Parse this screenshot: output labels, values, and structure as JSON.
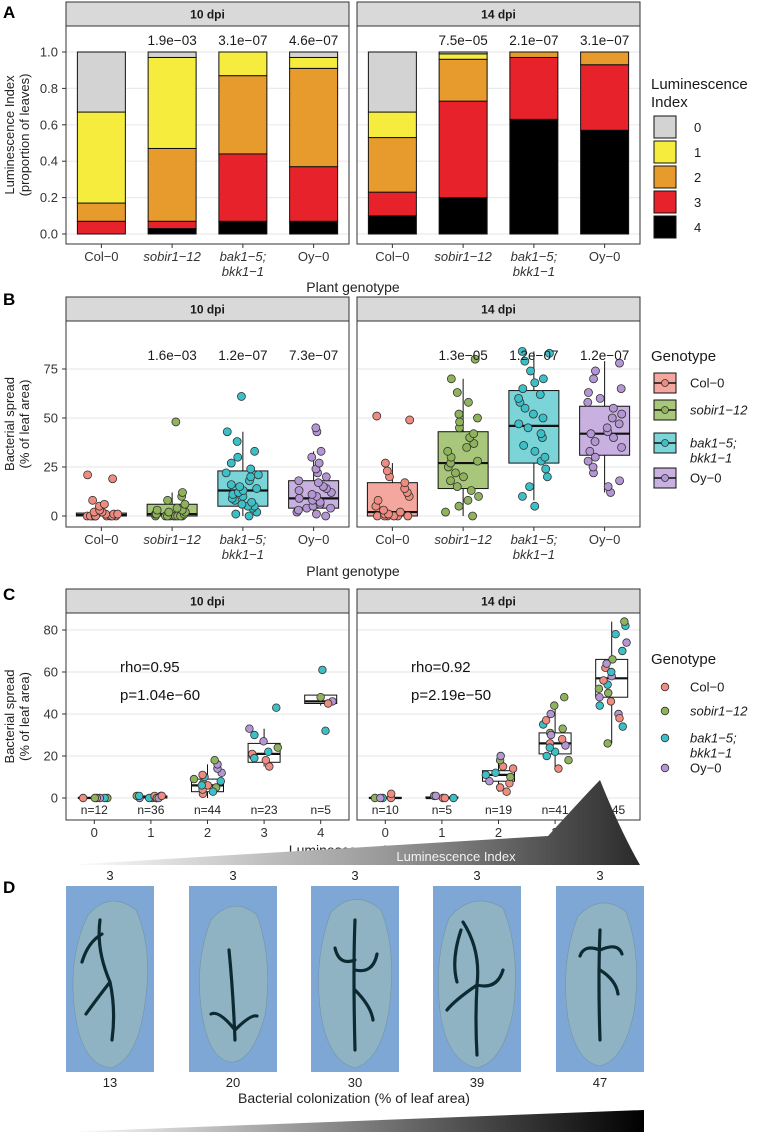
{
  "figure_panels": [
    "A",
    "B",
    "C",
    "D"
  ],
  "colors": {
    "strip_bg": "#d9d9d9",
    "panel_border": "#333333",
    "grid": "#ebebeb",
    "lum0": "#d3d3d3",
    "lum1": "#f5ec3e",
    "lum2": "#e79b2d",
    "lum3": "#e8222a",
    "lum4": "#000000",
    "col0": "#f08b80",
    "sobir": "#8fb35a",
    "bak": "#3cc0c8",
    "oy": "#b396d3",
    "col0_box": "#f4a79e",
    "sobir_box": "#a9c77a",
    "bak_box": "#7ad4d8",
    "oy_box": "#c8b1e0",
    "leaf_bg": "#7fa7d6"
  },
  "chart_data": [
    {
      "panel": "A",
      "type": "bar",
      "stacked": true,
      "facets": [
        "10  dpi",
        "14  dpi"
      ],
      "categories": [
        "Col−0",
        "sobir1−12",
        "bak1−5;\nbkk1−1",
        "Oy−0"
      ],
      "category_lines": [
        [
          "Col−0"
        ],
        [
          "sobir1−12"
        ],
        [
          "bak1−5;",
          "bkk1−1"
        ],
        [
          "Oy−0"
        ]
      ],
      "category_italic": [
        false,
        true,
        true,
        false
      ],
      "xlabel": "Plant genotype",
      "ylabel_lines": [
        "Luminescence Index",
        "(proportion of leaves)"
      ],
      "ylim": [
        0,
        1.0
      ],
      "yticks": [
        "0.0",
        "0.2",
        "0.4",
        "0.6",
        "0.8",
        "1.0"
      ],
      "ytick_values": [
        0,
        0.2,
        0.4,
        0.6,
        0.8,
        1.0
      ],
      "pvalues": {
        "10  dpi": [
          "",
          "1.9e−03",
          "3.1e−07",
          "4.6e−07"
        ],
        "14  dpi": [
          "",
          "7.5e−05",
          "2.1e−07",
          "3.1e−07"
        ]
      },
      "legend_title_lines": [
        "Luminescence",
        "Index"
      ],
      "legend_labels": [
        "0",
        "1",
        "2",
        "3",
        "4"
      ],
      "series_order_bottom_to_top": [
        "4",
        "3",
        "2",
        "1",
        "0"
      ],
      "series": {
        "10  dpi": [
          {
            "name": "4",
            "values": [
              0.0,
              0.03,
              0.07,
              0.07
            ]
          },
          {
            "name": "3",
            "values": [
              0.07,
              0.04,
              0.37,
              0.3
            ]
          },
          {
            "name": "2",
            "values": [
              0.1,
              0.4,
              0.43,
              0.54
            ]
          },
          {
            "name": "1",
            "values": [
              0.5,
              0.5,
              0.13,
              0.06
            ]
          },
          {
            "name": "0",
            "values": [
              0.33,
              0.03,
              0.0,
              0.03
            ]
          }
        ],
        "14  dpi": [
          {
            "name": "4",
            "values": [
              0.1,
              0.2,
              0.63,
              0.57
            ]
          },
          {
            "name": "3",
            "values": [
              0.13,
              0.53,
              0.34,
              0.36
            ]
          },
          {
            "name": "2",
            "values": [
              0.3,
              0.23,
              0.03,
              0.07
            ]
          },
          {
            "name": "1",
            "values": [
              0.14,
              0.03,
              0.0,
              0.0
            ]
          },
          {
            "name": "0",
            "values": [
              0.33,
              0.01,
              0.0,
              0.0
            ]
          }
        ]
      }
    },
    {
      "panel": "B",
      "type": "box",
      "facets": [
        "10  dpi",
        "14  dpi"
      ],
      "categories": [
        "Col−0",
        "sobir1−12",
        "bak1−5;\nbkk1−1",
        "Oy−0"
      ],
      "category_lines": [
        [
          "Col−0"
        ],
        [
          "sobir1−12"
        ],
        [
          "bak1−5;",
          "bkk1−1"
        ],
        [
          "Oy−0"
        ]
      ],
      "category_italic": [
        false,
        true,
        true,
        false
      ],
      "xlabel": "Plant genotype",
      "ylabel_lines": [
        "Bacterial spread",
        "(% of leaf area)"
      ],
      "ylim": [
        -5,
        90
      ],
      "yticks": [
        "0",
        "25",
        "50",
        "75"
      ],
      "ytick_values": [
        0,
        25,
        50,
        75
      ],
      "pvalues": {
        "10  dpi": [
          "",
          "1.6e−03",
          "1.2e−07",
          "7.3e−07"
        ],
        "14  dpi": [
          "",
          "1.3e−05",
          "1.2e−07",
          "1.2e−07"
        ]
      },
      "legend_title": "Genotype",
      "legend_labels": [
        "Col−0",
        "sobir1−12",
        "bak1−5;\nbkk1−1",
        "Oy−0"
      ],
      "boxes": {
        "10  dpi": [
          {
            "q1": 0,
            "median": 0.5,
            "q3": 1.5,
            "lo": 0,
            "hi": 3
          },
          {
            "q1": 0,
            "median": 1,
            "q3": 6,
            "lo": 0,
            "hi": 12
          },
          {
            "q1": 5,
            "median": 13,
            "q3": 23,
            "lo": 0,
            "hi": 43
          },
          {
            "q1": 4,
            "median": 9,
            "q3": 18,
            "lo": 0,
            "hi": 33
          }
        ],
        "14  dpi": [
          {
            "q1": 0,
            "median": 2,
            "q3": 17,
            "lo": 0,
            "hi": 27
          },
          {
            "q1": 14,
            "median": 27,
            "q3": 43,
            "lo": 0,
            "hi": 70
          },
          {
            "q1": 27,
            "median": 46,
            "q3": 64,
            "lo": 8,
            "hi": 84
          },
          {
            "q1": 31,
            "median": 42,
            "q3": 56,
            "lo": 12,
            "hi": 79
          }
        ]
      },
      "points": {
        "10  dpi": [
          [
            0,
            0,
            0,
            0,
            0,
            0,
            0,
            0,
            0,
            0,
            1,
            1,
            1,
            2,
            2,
            3,
            5,
            6,
            8,
            19,
            21
          ],
          [
            0,
            0,
            0,
            0,
            0,
            0,
            0,
            0,
            0,
            1,
            1,
            1,
            2,
            2,
            3,
            3,
            4,
            6,
            8,
            10,
            12,
            48
          ],
          [
            0,
            1,
            2,
            4,
            5,
            5,
            6,
            7,
            8,
            9,
            10,
            11,
            12,
            13,
            14,
            15,
            16,
            18,
            20,
            21,
            22,
            24,
            27,
            30,
            33,
            38,
            43,
            61
          ],
          [
            0,
            1,
            2,
            3,
            4,
            4,
            5,
            6,
            7,
            8,
            9,
            10,
            11,
            12,
            13,
            14,
            15,
            17,
            18,
            20,
            22,
            24,
            27,
            30,
            33,
            43,
            45
          ]
        ],
        "14  dpi": [
          [
            0,
            0,
            0,
            0,
            0,
            0,
            1,
            1,
            2,
            3,
            5,
            8,
            10,
            12,
            14,
            17,
            20,
            23,
            27,
            49,
            51
          ],
          [
            0,
            2,
            5,
            8,
            10,
            13,
            15,
            18,
            20,
            22,
            25,
            27,
            28,
            30,
            33,
            35,
            37,
            40,
            42,
            45,
            48,
            50,
            52,
            58,
            63,
            70,
            80
          ],
          [
            5,
            10,
            15,
            20,
            24,
            28,
            30,
            33,
            36,
            40,
            42,
            45,
            47,
            50,
            52,
            55,
            58,
            60,
            62,
            65,
            68,
            70,
            74,
            79,
            83,
            84
          ],
          [
            12,
            15,
            18,
            22,
            25,
            28,
            30,
            33,
            35,
            38,
            40,
            42,
            43,
            45,
            47,
            50,
            52,
            55,
            58,
            60,
            63,
            65,
            70,
            74,
            78
          ]
        ]
      }
    },
    {
      "panel": "C",
      "type": "box",
      "facets": [
        "10  dpi",
        "14  dpi"
      ],
      "categories": [
        "0",
        "1",
        "2",
        "3",
        "4"
      ],
      "xlabel": "Luminescence Index",
      "ylabel_lines": [
        "Bacterial spread",
        "(% of leaf area)"
      ],
      "ylim": [
        -5,
        88
      ],
      "yticks": [
        "0",
        "20",
        "40",
        "60",
        "80"
      ],
      "ytick_values": [
        0,
        20,
        40,
        60,
        80
      ],
      "annotations": {
        "10  dpi": [
          "rho=0.95",
          "p=1.04e−60"
        ],
        "14  dpi": [
          "rho=0.92",
          "p=2.19e−50"
        ]
      },
      "n_labels": {
        "10  dpi": [
          "n=12",
          "n=36",
          "n=44",
          "n=23",
          "n=5"
        ],
        "14  dpi": [
          "n=10",
          "n=5",
          "n=19",
          "n=41",
          "n=45"
        ]
      },
      "legend_title": "Genotype",
      "legend_labels": [
        "Col−0",
        "sobir1−12",
        "bak1−5;\nbkk1−1",
        "Oy−0"
      ],
      "boxes": {
        "10  dpi": [
          {
            "q1": 0,
            "median": 0,
            "q3": 0.3,
            "lo": 0,
            "hi": 0.5
          },
          {
            "q1": 0,
            "median": 0.3,
            "q3": 1,
            "lo": 0,
            "hi": 2
          },
          {
            "q1": 3,
            "median": 6,
            "q3": 9,
            "lo": 0,
            "hi": 16
          },
          {
            "q1": 17,
            "median": 21,
            "q3": 26,
            "lo": 15,
            "hi": 33
          },
          {
            "q1": 45,
            "median": 46,
            "q3": 49,
            "lo": 44,
            "hi": 50
          }
        ],
        "14  dpi": [
          {
            "q1": 0,
            "median": 0,
            "q3": 0.3,
            "lo": 0,
            "hi": 0.5
          },
          {
            "q1": 0,
            "median": 0,
            "q3": 0.5,
            "lo": 0,
            "hi": 1
          },
          {
            "q1": 8,
            "median": 11,
            "q3": 13,
            "lo": 3,
            "hi": 18
          },
          {
            "q1": 21,
            "median": 26,
            "q3": 31,
            "lo": 14,
            "hi": 44
          },
          {
            "q1": 48,
            "median": 57,
            "q3": 66,
            "lo": 26,
            "hi": 84
          }
        ]
      },
      "points": {
        "10  dpi": [
          [
            [
              0,
              0
            ],
            [
              0,
              1
            ],
            [
              0,
              2
            ],
            [
              0,
              3
            ],
            [
              0,
              0
            ],
            [
              0,
              1
            ]
          ],
          [
            [
              0,
              0
            ],
            [
              0,
              1
            ],
            [
              0,
              2
            ],
            [
              0,
              3
            ],
            [
              1,
              0
            ],
            [
              1,
              1
            ],
            [
              1,
              2
            ],
            [
              1,
              3
            ],
            [
              0,
              1
            ],
            [
              1,
              2
            ],
            [
              0,
              3
            ],
            [
              1,
              0
            ]
          ],
          [
            [
              2,
              0
            ],
            [
              5,
              1
            ],
            [
              8,
              2
            ],
            [
              12,
              3
            ],
            [
              4,
              0
            ],
            [
              7,
              1
            ],
            [
              10,
              2
            ],
            [
              14,
              3
            ],
            [
              6,
              0
            ],
            [
              9,
              1
            ],
            [
              3,
              2
            ],
            [
              16,
              3
            ],
            [
              11,
              0
            ],
            [
              6,
              2
            ],
            [
              18,
              1
            ]
          ],
          [
            [
              15,
              0
            ],
            [
              20,
              1
            ],
            [
              22,
              2
            ],
            [
              27,
              3
            ],
            [
              18,
              0
            ],
            [
              24,
              1
            ],
            [
              30,
              2
            ],
            [
              33,
              3
            ],
            [
              21,
              0
            ],
            [
              19,
              2
            ],
            [
              43,
              2
            ]
          ],
          [
            [
              48,
              1
            ],
            [
              46,
              3
            ],
            [
              32,
              2
            ],
            [
              61,
              2
            ],
            [
              45,
              0
            ]
          ]
        ],
        "14  dpi": [
          [
            [
              0,
              0
            ],
            [
              2,
              0
            ],
            [
              0,
              1
            ],
            [
              0,
              2
            ],
            [
              0,
              3
            ]
          ],
          [
            [
              0,
              0
            ],
            [
              1,
              1
            ],
            [
              0,
              2
            ],
            [
              1,
              3
            ],
            [
              0,
              0
            ]
          ],
          [
            [
              3,
              0
            ],
            [
              7,
              0
            ],
            [
              10,
              1
            ],
            [
              12,
              2
            ],
            [
              15,
              0
            ],
            [
              18,
              1
            ],
            [
              8,
              3
            ],
            [
              11,
              2
            ],
            [
              14,
              0
            ],
            [
              20,
              3
            ],
            [
              5,
              0
            ]
          ],
          [
            [
              14,
              0
            ],
            [
              18,
              1
            ],
            [
              22,
              2
            ],
            [
              25,
              3
            ],
            [
              28,
              0
            ],
            [
              31,
              1
            ],
            [
              35,
              2
            ],
            [
              40,
              3
            ],
            [
              44,
              1
            ],
            [
              48,
              1
            ],
            [
              20,
              2
            ],
            [
              26,
              0
            ],
            [
              30,
              3
            ],
            [
              33,
              1
            ],
            [
              24,
              2
            ],
            [
              37,
              0
            ]
          ],
          [
            [
              26,
              1
            ],
            [
              34,
              2
            ],
            [
              40,
              3
            ],
            [
              46,
              0
            ],
            [
              50,
              1
            ],
            [
              54,
              2
            ],
            [
              58,
              3
            ],
            [
              62,
              0
            ],
            [
              66,
              1
            ],
            [
              70,
              2
            ],
            [
              74,
              3
            ],
            [
              78,
              2
            ],
            [
              82,
              2
            ],
            [
              84,
              1
            ],
            [
              48,
              3
            ],
            [
              56,
              0
            ],
            [
              60,
              2
            ],
            [
              64,
              3
            ],
            [
              52,
              1
            ],
            [
              44,
              2
            ],
            [
              38,
              0
            ]
          ]
        ]
      }
    }
  ],
  "panel_d": {
    "banner_label": "Luminescence Index",
    "top_labels": [
      "3",
      "3",
      "3",
      "3",
      "3"
    ],
    "bottom_labels": [
      "13",
      "20",
      "30",
      "39",
      "47"
    ],
    "xlabel": "Bacterial colonization (% of leaf area)"
  }
}
